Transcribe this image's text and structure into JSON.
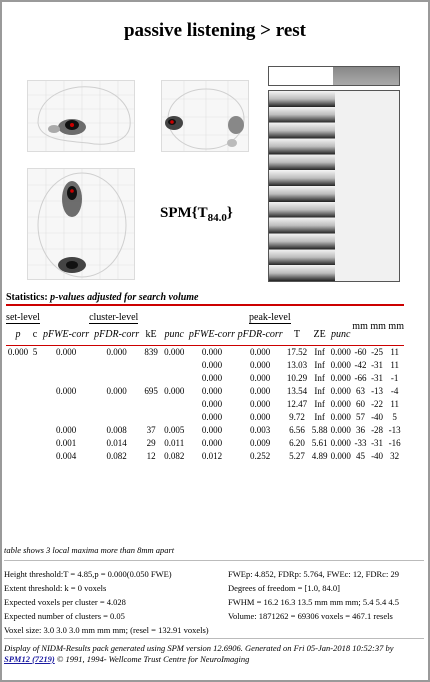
{
  "title": "passive listening > rest",
  "spm_label": {
    "prefix": "SPM{T",
    "sub": "84.0",
    "suffix": "}"
  },
  "stats_heading": {
    "bold": "Statistics: ",
    "italic": "p-values adjusted for search volume"
  },
  "table": {
    "group_headers": [
      "set-level",
      "cluster-level",
      "peak-level",
      "mm mm mm"
    ],
    "col_headers": [
      "p",
      "c",
      "pFWE-corr",
      "pFDR-corr",
      "kE",
      "punc",
      "pFWE-corr",
      "pFDR-corr",
      "T",
      "ZE",
      "punc"
    ],
    "rows": [
      [
        "0.000",
        "5",
        "0.000",
        "0.000",
        "839",
        "0.000",
        "0.000",
        "0.000",
        "17.52",
        "Inf",
        "0.000",
        "-60",
        "-25",
        "11"
      ],
      [
        "",
        "",
        "",
        "",
        "",
        "",
        "0.000",
        "0.000",
        "13.03",
        "Inf",
        "0.000",
        "-42",
        "-31",
        "11"
      ],
      [
        "",
        "",
        "",
        "",
        "",
        "",
        "0.000",
        "0.000",
        "10.29",
        "Inf",
        "0.000",
        "-66",
        "-31",
        "-1"
      ],
      [
        "",
        "",
        "0.000",
        "0.000",
        "695",
        "0.000",
        "0.000",
        "0.000",
        "13.54",
        "Inf",
        "0.000",
        "63",
        "-13",
        "-4"
      ],
      [
        "",
        "",
        "",
        "",
        "",
        "",
        "0.000",
        "0.000",
        "12.47",
        "Inf",
        "0.000",
        "60",
        "-22",
        "11"
      ],
      [
        "",
        "",
        "",
        "",
        "",
        "",
        "0.000",
        "0.000",
        "9.72",
        "Inf",
        "0.000",
        "57",
        "-40",
        "5"
      ],
      [
        "",
        "",
        "0.000",
        "0.008",
        "37",
        "0.005",
        "0.000",
        "0.003",
        "6.56",
        "5.88",
        "0.000",
        "36",
        "-28",
        "-13"
      ],
      [
        "",
        "",
        "0.001",
        "0.014",
        "29",
        "0.011",
        "0.000",
        "0.009",
        "6.20",
        "5.61",
        "0.000",
        "-33",
        "-31",
        "-16"
      ],
      [
        "",
        "",
        "0.004",
        "0.082",
        "12",
        "0.082",
        "0.012",
        "0.252",
        "5.27",
        "4.89",
        "0.000",
        "45",
        "-40",
        "32"
      ]
    ]
  },
  "note": "table shows 3 local maxima more than 8mm apart",
  "footer_left": [
    "Height threshold:T = 4.85,p = 0.000(0.050 FWE)",
    "Extent threshold: k = 0 voxels",
    "Expected voxels per cluster = 4.028",
    "Expected number of clusters = 0.05",
    "Voxel size: 3.0 3.0 3.0 mm mm mm; (resel = 132.91 voxels)"
  ],
  "footer_right": [
    "FWEp: 4.852, FDRp: 5.764, FWEc: 12, FDRc: 29",
    "Degrees of freedom = [1.0, 84.0]",
    "FWHM = 16.2 16.3 13.5 mm mm mm; 5.4 5.4 4.5",
    "Volume: 1871262 = 69306 voxels = 467.1 resels"
  ],
  "credit": {
    "line1": "Display of NIDM-Results pack generated using SPM version 12.6906. Generated on Fri 05-Jan-2018 10:52:37 by",
    "link": "SPM12 (7219)",
    "line2": " © 1991, 1994- Wellcome Trust Centre for NeuroImaging"
  },
  "colors": {
    "accent_line": "#cc0000",
    "blob_dark": "#111111",
    "peak_marker": "#cc0000",
    "link": "#1a1aa0"
  }
}
